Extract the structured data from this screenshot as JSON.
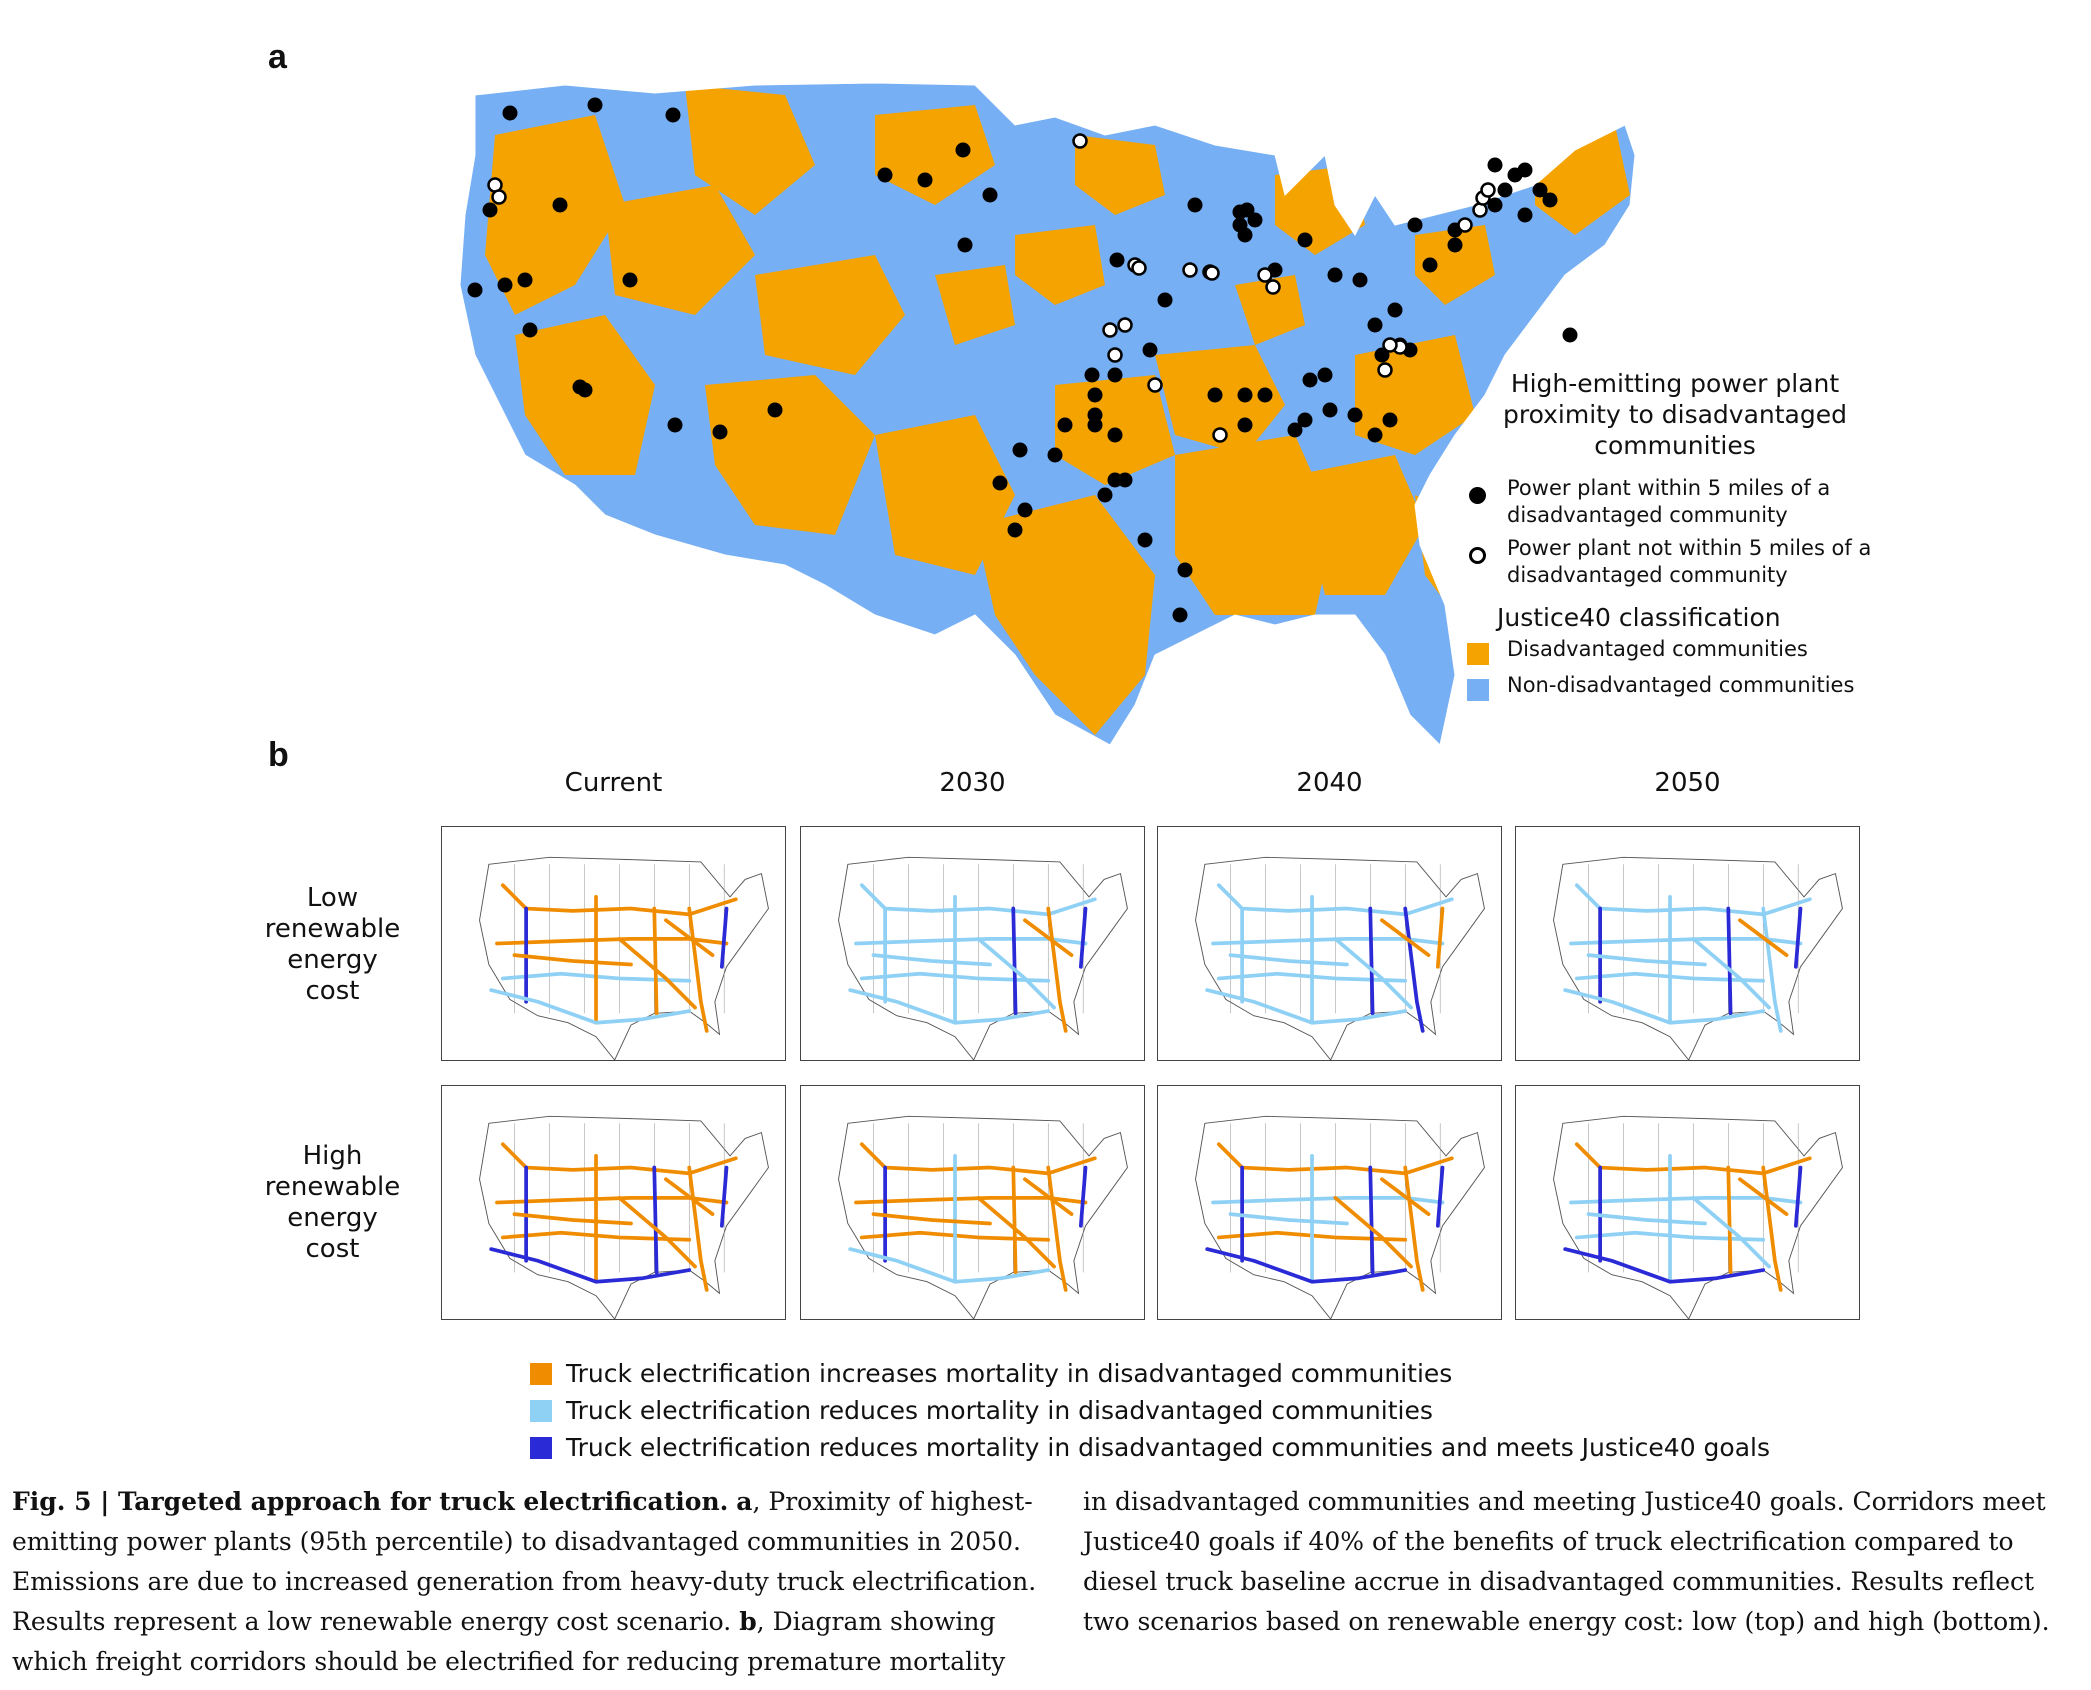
{
  "panel_a": {
    "label": "a",
    "legend": {
      "title": "High-emitting power plant proximity to disadvantaged communities",
      "within_label": "Power plant within 5 miles of a disadvantaged community",
      "not_within_label": "Power plant not within 5 miles of a disadvantaged community",
      "classification_title": "Justice40 classification",
      "disadvantaged_label": "Disadvantaged communities",
      "non_disadvantaged_label": "Non-disadvantaged communities"
    },
    "colors": {
      "disadvantaged": "#f5a300",
      "non_disadvantaged": "#76aff4",
      "plant_within": "#000000",
      "plant_not_within": "#ffffff"
    }
  },
  "panel_b": {
    "label": "b",
    "columns": [
      "Current",
      "2030",
      "2040",
      "2050"
    ],
    "rows": [
      {
        "label_lines": [
          "Low",
          "renewable",
          "energy",
          "cost"
        ],
        "key": "low"
      },
      {
        "label_lines": [
          "High",
          "renewable",
          "energy",
          "cost"
        ],
        "key": "high"
      }
    ],
    "legend": {
      "increase_label": "Truck electrification increases mortality in disadvantaged communities",
      "reduce_label": "Truck electrification reduces mortality in disadvantaged communities",
      "meets_label": "Truck electrification reduces mortality in disadvantaged communities and meets Justice40 goals"
    },
    "colors": {
      "increase": "#f08c00",
      "reduce": "#8fd0f5",
      "meets": "#2a2ad6"
    }
  },
  "caption": {
    "fig_label": "Fig. 5 | Targeted approach for truck electrification.",
    "text_a_label": "a",
    "text_1": ", Proximity of highest-emitting power plants (95th percentile) to disadvantaged communities in 2050. Emissions are due to increased generation from heavy-duty truck electrification. Results represent a low renewable energy cost scenario. ",
    "text_b_label": "b",
    "text_2": ", Diagram showing which freight corridors should be electrified for reducing premature mortality",
    "text_3": "in disadvantaged communities and meeting Justice40 goals. Corridors meet Justice40 goals if 40% of the benefits of truck electrification compared to diesel truck baseline accrue in disadvantaged communities. Results reflect two scenarios based on renewable energy cost: low (top) and high (bottom)."
  }
}
